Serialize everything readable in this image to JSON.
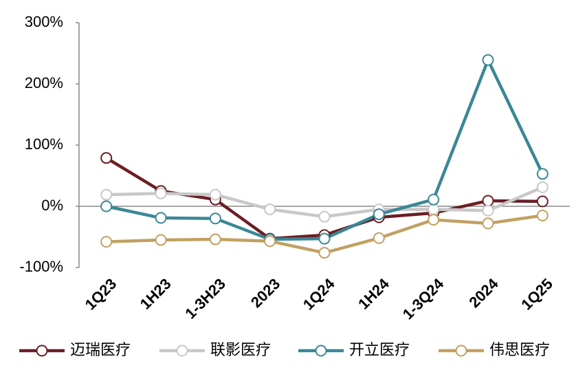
{
  "chart_data": {
    "type": "line",
    "categories": [
      "1Q23",
      "1H23",
      "1-3H23",
      "2023",
      "1Q24",
      "1H24",
      "1-3Q24",
      "2024",
      "1Q25"
    ],
    "series": [
      {
        "name": "迈瑞医疗",
        "color": "#6b1e24",
        "values": [
          79,
          25,
          11,
          -53,
          -47,
          -18,
          -11,
          9,
          8
        ]
      },
      {
        "name": "联影医疗",
        "color": "#c8c8c8",
        "values": [
          19,
          21,
          19,
          -5,
          -17,
          -5,
          -5,
          -7,
          31
        ]
      },
      {
        "name": "开立医疗",
        "color": "#3a8796",
        "values": [
          0,
          -19,
          -20,
          -54,
          -53,
          -13,
          11,
          239,
          53
        ]
      },
      {
        "name": "伟思医疗",
        "color": "#c2a062",
        "values": [
          -58,
          -55,
          -54,
          -57,
          -76,
          -52,
          -22,
          -28,
          -15
        ]
      }
    ],
    "ylim": [
      -100,
      300
    ],
    "yticks": [
      {
        "value": -100,
        "label": "-100%"
      },
      {
        "value": 0,
        "label": "0%"
      },
      {
        "value": 100,
        "label": "100%"
      },
      {
        "value": 200,
        "label": "200%"
      },
      {
        "value": 300,
        "label": "300%"
      }
    ],
    "grid": false
  }
}
